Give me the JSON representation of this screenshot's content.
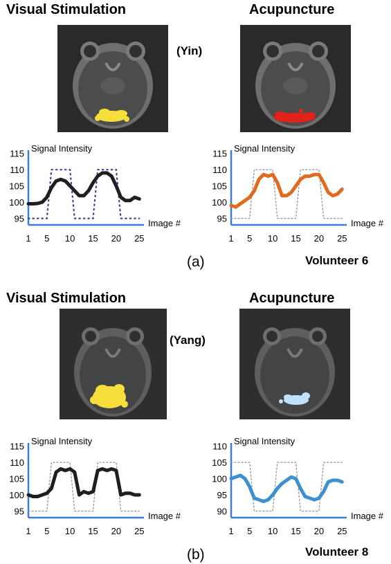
{
  "colors": {
    "axis": "#3a7dd8",
    "yin_visual_line": "#1f1f1f",
    "yin_visual_stim": "#3b3f9c",
    "yin_acu_line": "#e06a1e",
    "yin_acu_stim": "#9a9aa8",
    "yang_visual_line": "#1f1f1f",
    "yang_visual_stim": "#9a9aa8",
    "yang_acu_line": "#3d8fcf",
    "yang_acu_stim": "#9a9aa8",
    "activation_yellow": "#f6df3a",
    "activation_red": "#e0221b",
    "activation_lightblue": "#bfe3ff"
  },
  "panel_a": {
    "left_title": "Visual Stimulation",
    "right_title": "Acupuncture",
    "center_label": "(Yin)",
    "panel_label": "(a)",
    "volunteer": "Volunteer 6"
  },
  "panel_b": {
    "left_title": "Visual Stimulation",
    "right_title": "Acupuncture",
    "center_label": "(Yang)",
    "panel_label": "(b)",
    "volunteer": "Volunteer 8"
  },
  "chart_data": [
    {
      "id": "yin_visual",
      "type": "line",
      "ylabel": "Signal Intensity",
      "xlabel": "Image #",
      "yticks": [
        95,
        100,
        105,
        110,
        115
      ],
      "xticks": [
        1,
        5,
        10,
        15,
        20,
        25
      ],
      "ylim": [
        93,
        116
      ],
      "xlim": [
        1,
        26
      ],
      "x": [
        1,
        2,
        3,
        4,
        5,
        6,
        7,
        8,
        9,
        10,
        11,
        12,
        13,
        14,
        15,
        16,
        17,
        18,
        19,
        20,
        21,
        22,
        23,
        24,
        25
      ],
      "series": [
        {
          "role": "signal",
          "style": "thick",
          "values": [
            99.5,
            99.5,
            99.6,
            100,
            101.5,
            104.5,
            106.5,
            107,
            106.5,
            105,
            103.5,
            102,
            102,
            103.5,
            106,
            108,
            109,
            109,
            108,
            105,
            101.5,
            100.5,
            100.5,
            101.5,
            101
          ]
        },
        {
          "role": "stimulus",
          "style": "dotted",
          "values": [
            95,
            95,
            95,
            95,
            95,
            110,
            110,
            110,
            110,
            110,
            95,
            95,
            95,
            95,
            95,
            110,
            110,
            110,
            110,
            110,
            95,
            95,
            95,
            95,
            95
          ]
        }
      ]
    },
    {
      "id": "yin_acupuncture",
      "type": "line",
      "ylabel": "Signal Intensity",
      "xlabel": "Image #",
      "yticks": [
        95,
        100,
        105,
        110,
        115
      ],
      "xticks": [
        1,
        5,
        10,
        15,
        20,
        25
      ],
      "ylim": [
        93,
        116
      ],
      "xlim": [
        1,
        26
      ],
      "x": [
        1,
        2,
        3,
        4,
        5,
        6,
        7,
        8,
        9,
        10,
        11,
        12,
        13,
        14,
        15,
        16,
        17,
        18,
        19,
        20,
        21,
        22,
        23,
        24,
        25
      ],
      "series": [
        {
          "role": "signal",
          "style": "thick",
          "values": [
            99,
            98.5,
            99.5,
            100.5,
            101.5,
            103.5,
            107,
            108.5,
            108,
            108.5,
            106,
            102,
            102,
            103,
            105,
            107,
            108,
            108,
            108.5,
            108.5,
            106,
            103,
            102,
            102.5,
            104
          ]
        },
        {
          "role": "stimulus",
          "style": "dotted",
          "values": [
            95,
            95,
            95,
            95,
            95,
            110,
            110,
            110,
            110,
            110,
            95,
            95,
            95,
            95,
            95,
            110,
            110,
            110,
            110,
            110,
            95,
            95,
            95,
            95,
            95
          ]
        }
      ]
    },
    {
      "id": "yang_visual",
      "type": "line",
      "ylabel": "Signal Intensity",
      "xlabel": "Image #",
      "yticks": [
        95,
        100,
        105,
        110,
        115
      ],
      "xticks": [
        1,
        5,
        10,
        15,
        20,
        25
      ],
      "ylim": [
        93,
        116
      ],
      "xlim": [
        1,
        26
      ],
      "x": [
        1,
        2,
        3,
        4,
        5,
        6,
        7,
        8,
        9,
        10,
        11,
        12,
        13,
        14,
        15,
        16,
        17,
        18,
        19,
        20,
        21,
        22,
        23,
        24,
        25
      ],
      "series": [
        {
          "role": "signal",
          "style": "thick",
          "values": [
            100,
            99.5,
            99.5,
            100,
            100.5,
            102,
            107,
            108,
            107.5,
            108,
            107,
            100,
            101,
            100.5,
            101,
            107.5,
            108,
            107.5,
            108,
            107.5,
            100,
            100.5,
            100.5,
            100,
            100
          ]
        },
        {
          "role": "stimulus",
          "style": "dotted",
          "values": [
            95,
            95,
            95,
            95,
            95,
            110,
            110,
            110,
            110,
            110,
            95,
            95,
            95,
            95,
            95,
            110,
            110,
            110,
            110,
            110,
            95,
            95,
            95,
            95,
            95
          ]
        }
      ]
    },
    {
      "id": "yang_acupuncture",
      "type": "line",
      "ylabel": "Signal Intensity",
      "xlabel": "Image #",
      "yticks": [
        90,
        95,
        100,
        105,
        110
      ],
      "xticks": [
        1,
        5,
        10,
        15,
        20,
        25
      ],
      "ylim": [
        88,
        111
      ],
      "xlim": [
        1,
        26
      ],
      "x": [
        1,
        2,
        3,
        4,
        5,
        6,
        7,
        8,
        9,
        10,
        11,
        12,
        13,
        14,
        15,
        16,
        17,
        18,
        19,
        20,
        21,
        22,
        23,
        24,
        25
      ],
      "series": [
        {
          "role": "signal",
          "style": "thick",
          "values": [
            100,
            100.5,
            101,
            100,
            97.5,
            94,
            93.5,
            93,
            93.5,
            95,
            97,
            98.5,
            99.5,
            100.5,
            100,
            97,
            94.5,
            94,
            93.5,
            94,
            96,
            99,
            99.5,
            99.5,
            99
          ]
        },
        {
          "role": "stimulus",
          "style": "dotted",
          "values": [
            105,
            105,
            105,
            105,
            105,
            90,
            90,
            90,
            90,
            90,
            105,
            105,
            105,
            105,
            105,
            90,
            90,
            90,
            90,
            90,
            105,
            105,
            105,
            105,
            105
          ]
        }
      ]
    }
  ]
}
